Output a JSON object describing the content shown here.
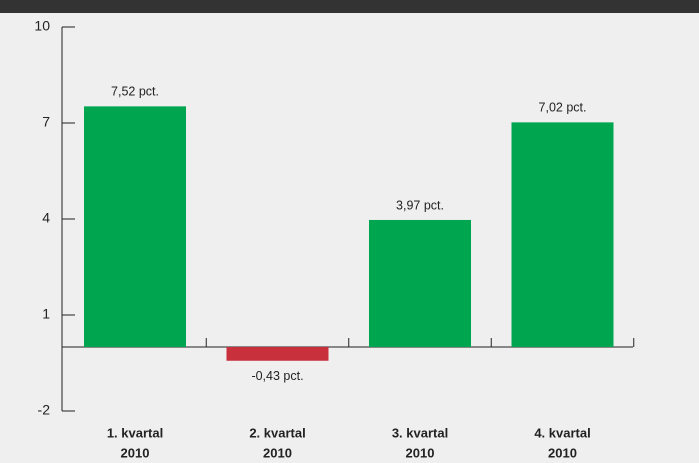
{
  "chart_data": {
    "type": "bar",
    "categories": [
      [
        "1. kvartal",
        "2010"
      ],
      [
        "2. kvartal",
        "2010"
      ],
      [
        "3. kvartal",
        "2010"
      ],
      [
        "4. kvartal",
        "2010"
      ]
    ],
    "values": [
      7.52,
      -0.43,
      3.97,
      7.02
    ],
    "value_labels": [
      "7,52 pct.",
      "-0,43 pct.",
      "3,97 pct.",
      "7,02 pct."
    ],
    "colors": [
      "#00a54f",
      "#c8303b",
      "#00a54f",
      "#00a54f"
    ],
    "ylim": [
      -2,
      10
    ],
    "yticks": [
      -2,
      1,
      4,
      7,
      10
    ],
    "grid": false
  }
}
